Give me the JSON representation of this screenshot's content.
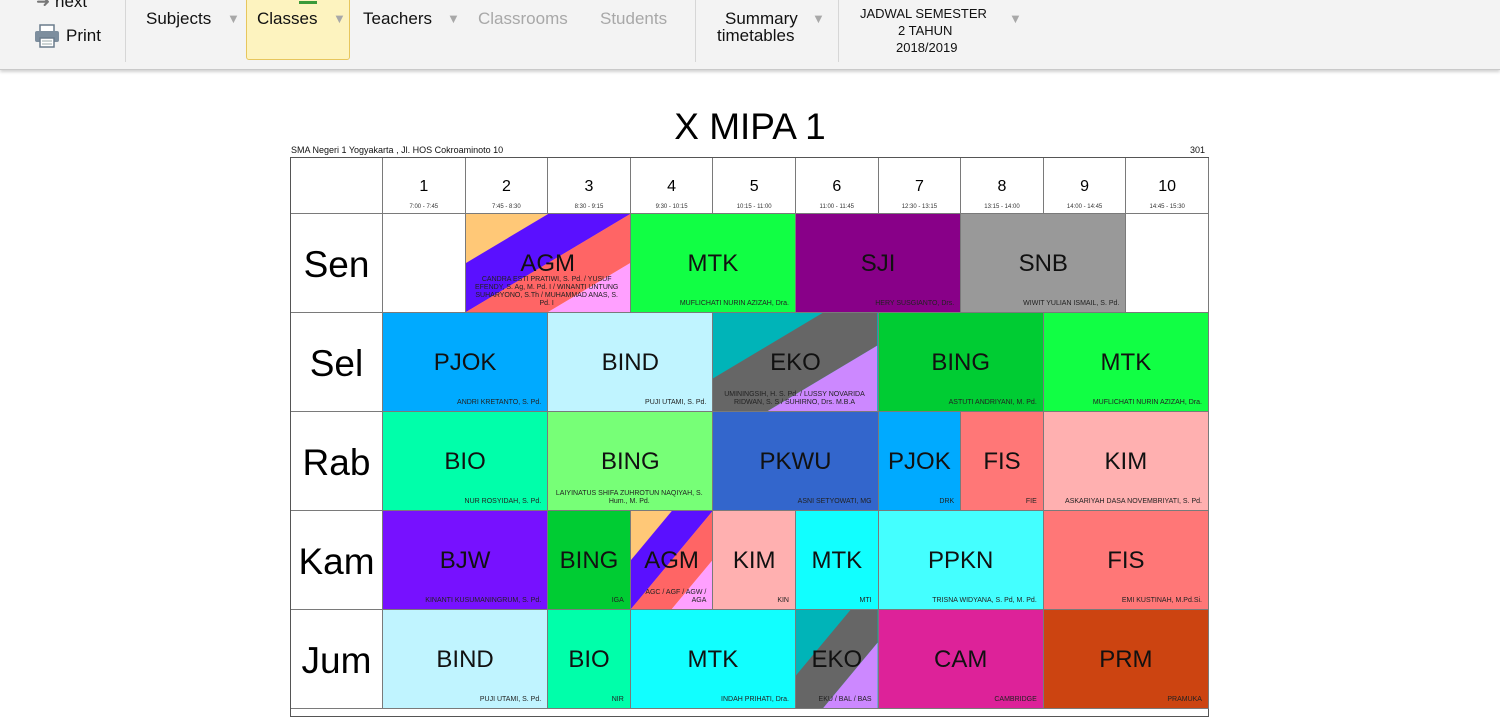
{
  "toolbar": {
    "next_label": "next",
    "print_label": "Print",
    "subjects_label": "Subjects",
    "classes_label": "Classes",
    "teachers_label": "Teachers",
    "classrooms_label": "Classrooms",
    "students_label": "Students",
    "summary_line1": "Summary",
    "summary_line2": "timetables",
    "schedule_line1": "JADWAL SEMESTER",
    "schedule_line2": "2 TAHUN",
    "schedule_line3": "2018/2019",
    "dropdown_glyph": "▼"
  },
  "timetable": {
    "title": "X MIPA 1",
    "school": "SMA Negeri 1 Yogyakarta , Jl. HOS Cokroaminoto 10",
    "room": "301",
    "periods": [
      {
        "num": "1",
        "time": "7:00 - 7:45"
      },
      {
        "num": "2",
        "time": "7:45 - 8:30"
      },
      {
        "num": "3",
        "time": "8:30 - 9:15"
      },
      {
        "num": "4",
        "time": "9:30 - 10:15"
      },
      {
        "num": "5",
        "time": "10:15 - 11:00"
      },
      {
        "num": "6",
        "time": "11:00 - 11:45"
      },
      {
        "num": "7",
        "time": "12:30 - 13:15"
      },
      {
        "num": "8",
        "time": "13:15 - 14:00"
      },
      {
        "num": "9",
        "time": "14:00 - 14:45"
      },
      {
        "num": "10",
        "time": "14:45 - 15:30"
      }
    ],
    "days": [
      "Sen",
      "Sel",
      "Rab",
      "Kam",
      "Jum"
    ],
    "lessons": [
      {
        "day": 0,
        "start": 1,
        "span": 2,
        "subject": "AGM",
        "teacher": "CANDRA ESTI PRATIWI, S. Pd. / YUSUF EFENDY, S. Ag, M. Pd. I / WINANTI UNTUNG SUHARYONO, S.Th / MUHAMMAD ANAS, S. Pd. I",
        "colors": [
          "#ffc877",
          "#5a10ff",
          "#ff6565",
          "#ffa0ff"
        ]
      },
      {
        "day": 0,
        "start": 3,
        "span": 2,
        "subject": "MTK",
        "teacher": "MUFLICHATI NURIN AZIZAH, Dra.",
        "colors": [
          "#11ff44"
        ]
      },
      {
        "day": 0,
        "start": 5,
        "span": 2,
        "subject": "SJI",
        "teacher": "HERY SUSGIANTO, Drs.",
        "colors": [
          "#880088"
        ]
      },
      {
        "day": 0,
        "start": 7,
        "span": 2,
        "subject": "SNB",
        "teacher": "WIWIT YULIAN ISMAIL, S. Pd.",
        "colors": [
          "#999999"
        ]
      },
      {
        "day": 1,
        "start": 0,
        "span": 2,
        "subject": "PJOK",
        "teacher": "ANDRI KRETANTO, S. Pd.",
        "colors": [
          "#00aaff"
        ]
      },
      {
        "day": 1,
        "start": 2,
        "span": 2,
        "subject": "BIND",
        "teacher": "PUJI UTAMI, S. Pd.",
        "colors": [
          "#c0f4ff"
        ]
      },
      {
        "day": 1,
        "start": 4,
        "span": 2,
        "subject": "EKO",
        "teacher": "UMININGSIH, H. S. Pd. / LUSSY NOVARIDA RIDWAN, S. S / SUHIRNO, Drs. M.B.A",
        "colors": [
          "#00b4b8",
          "#666666",
          "#cc88ff"
        ]
      },
      {
        "day": 1,
        "start": 6,
        "span": 2,
        "subject": "BING",
        "teacher": "ASTUTI ANDRIYANI, M. Pd.",
        "colors": [
          "#00cc33"
        ]
      },
      {
        "day": 1,
        "start": 8,
        "span": 2,
        "subject": "MTK",
        "teacher": "MUFLICHATI NURIN AZIZAH, Dra.",
        "colors": [
          "#11ff44"
        ]
      },
      {
        "day": 2,
        "start": 0,
        "span": 2,
        "subject": "BIO",
        "teacher": "NUR ROSYIDAH, S. Pd.",
        "colors": [
          "#00ffaa"
        ]
      },
      {
        "day": 2,
        "start": 2,
        "span": 2,
        "subject": "BING",
        "teacher": "LAIYINATUS SHIFA ZUHROTUN NAQIYAH, S. Hum., M. Pd.",
        "colors": [
          "#77ff77"
        ]
      },
      {
        "day": 2,
        "start": 4,
        "span": 2,
        "subject": "PKWU",
        "teacher": "ASNI SETYOWATI, MG",
        "colors": [
          "#3366cc"
        ]
      },
      {
        "day": 2,
        "start": 6,
        "span": 1,
        "subject": "PJOK",
        "teacher": "DRK",
        "colors": [
          "#00aaff"
        ]
      },
      {
        "day": 2,
        "start": 7,
        "span": 1,
        "subject": "FIS",
        "teacher": "FIE",
        "colors": [
          "#ff7777"
        ]
      },
      {
        "day": 2,
        "start": 8,
        "span": 2,
        "subject": "KIM",
        "teacher": "ASKARIYAH DASA NOVEMBRIYATI, S. Pd.",
        "colors": [
          "#ffb0b0"
        ]
      },
      {
        "day": 3,
        "start": 0,
        "span": 2,
        "subject": "BJW",
        "teacher": "KINANTI KUSUMANINGRUM, S. Pd.",
        "colors": [
          "#7711ff"
        ]
      },
      {
        "day": 3,
        "start": 2,
        "span": 1,
        "subject": "BING",
        "teacher": "IGA",
        "colors": [
          "#00cc33"
        ]
      },
      {
        "day": 3,
        "start": 3,
        "span": 1,
        "subject": "AGM",
        "teacher": "AGC / AGF / AGW / AGA",
        "colors": [
          "#ffc877",
          "#5a10ff",
          "#ff6565",
          "#ffa0ff"
        ]
      },
      {
        "day": 3,
        "start": 4,
        "span": 1,
        "subject": "KIM",
        "teacher": "KIN",
        "colors": [
          "#ffb0b0"
        ]
      },
      {
        "day": 3,
        "start": 5,
        "span": 1,
        "subject": "MTK",
        "teacher": "MTI",
        "colors": [
          "#11ffff"
        ]
      },
      {
        "day": 3,
        "start": 6,
        "span": 2,
        "subject": "PPKN",
        "teacher": "TRISNA WIDYANA, S. Pd, M. Pd.",
        "colors": [
          "#44ffff"
        ]
      },
      {
        "day": 3,
        "start": 8,
        "span": 2,
        "subject": "FIS",
        "teacher": "EMI KUSTINAH, M.Pd.Si.",
        "colors": [
          "#ff7777"
        ]
      },
      {
        "day": 4,
        "start": 0,
        "span": 2,
        "subject": "BIND",
        "teacher": "PUJI UTAMI, S. Pd.",
        "colors": [
          "#c0f4ff"
        ]
      },
      {
        "day": 4,
        "start": 2,
        "span": 1,
        "subject": "BIO",
        "teacher": "NIR",
        "colors": [
          "#00ffaa"
        ]
      },
      {
        "day": 4,
        "start": 3,
        "span": 2,
        "subject": "MTK",
        "teacher": "INDAH PRIHATI, Dra.",
        "colors": [
          "#11ffff"
        ]
      },
      {
        "day": 4,
        "start": 5,
        "span": 1,
        "subject": "EKO",
        "teacher": "EKU / BAL / BAS",
        "colors": [
          "#00b4b8",
          "#666666",
          "#cc88ff"
        ]
      },
      {
        "day": 4,
        "start": 6,
        "span": 2,
        "subject": "CAM",
        "teacher": "CAMBRIDGE",
        "colors": [
          "#dd2299"
        ]
      },
      {
        "day": 4,
        "start": 8,
        "span": 2,
        "subject": "PRM",
        "teacher": "PRAMUKA",
        "colors": [
          "#cc4411"
        ]
      }
    ]
  }
}
